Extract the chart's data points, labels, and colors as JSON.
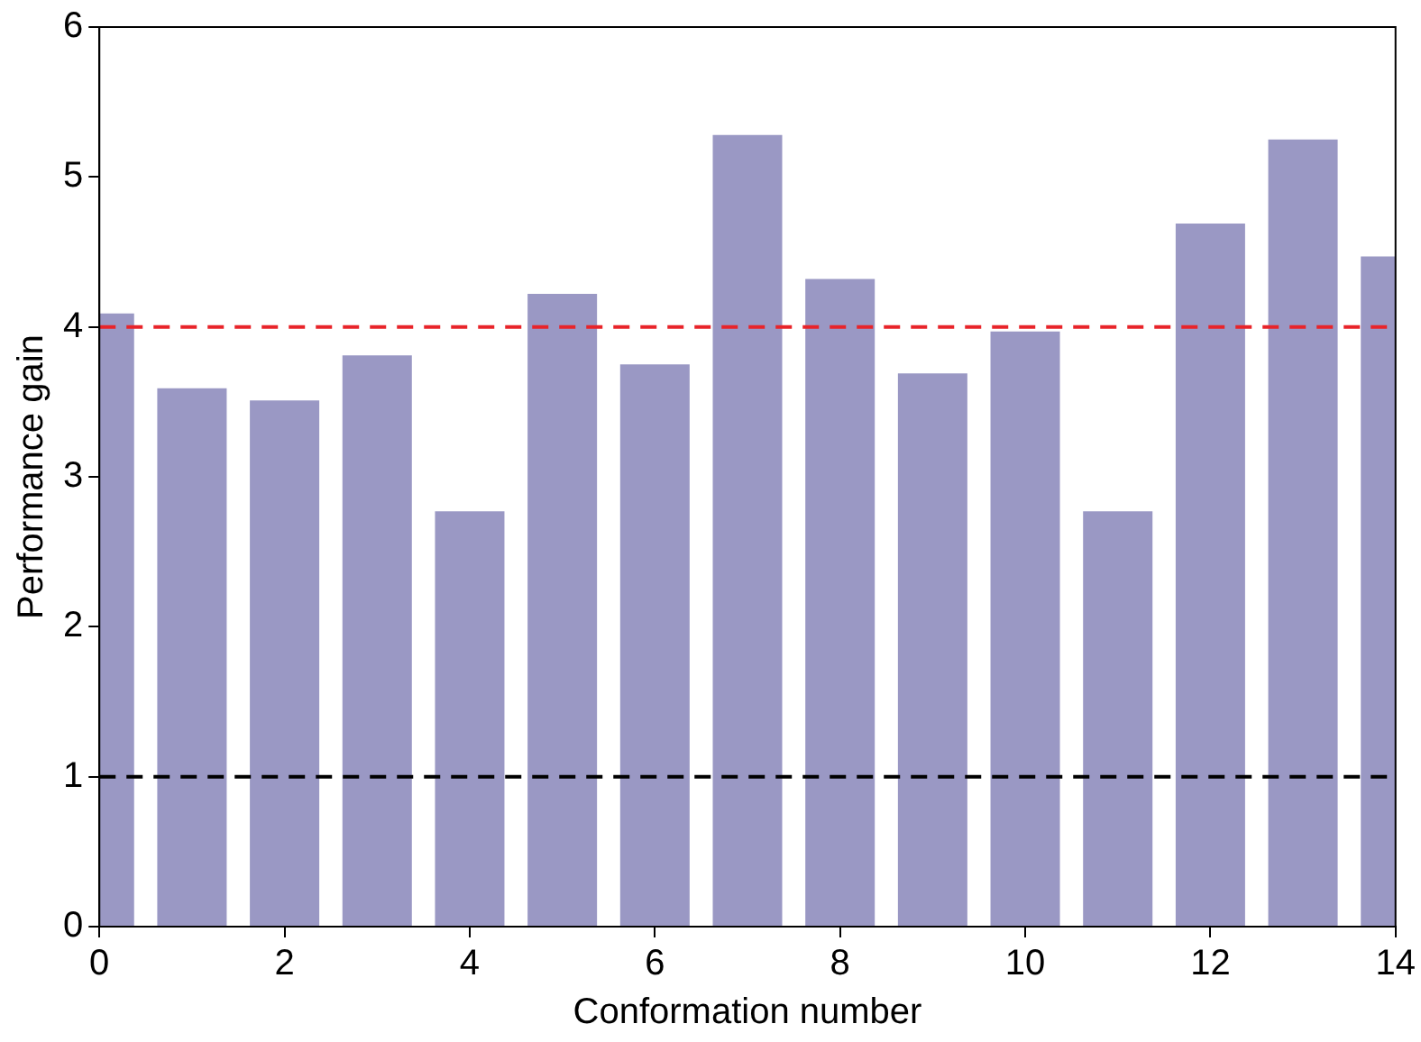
{
  "chart_data": {
    "type": "bar",
    "xlabel": "Conformation number",
    "ylabel": "Performance gain",
    "x": [
      0,
      1,
      2,
      3,
      4,
      5,
      6,
      7,
      8,
      9,
      10,
      11,
      12,
      13,
      14
    ],
    "values": [
      4.09,
      3.59,
      3.51,
      3.81,
      2.77,
      4.22,
      3.75,
      5.28,
      4.32,
      3.69,
      3.97,
      2.77,
      4.69,
      5.25,
      4.47
    ],
    "color": "#9a98c4",
    "xlim": [
      0,
      14
    ],
    "xticks": [
      0,
      2,
      4,
      6,
      8,
      10,
      12,
      14
    ],
    "ylim": [
      0,
      6
    ],
    "yticks": [
      0,
      1,
      2,
      3,
      4,
      5,
      6
    ],
    "grid": false,
    "legend": false,
    "ref_lines": [
      {
        "axis": "y",
        "value": 4,
        "color": "#e8242a",
        "line_style": "dashed"
      },
      {
        "axis": "y",
        "value": 1,
        "color": "#000000",
        "line_style": "dashed"
      }
    ]
  }
}
